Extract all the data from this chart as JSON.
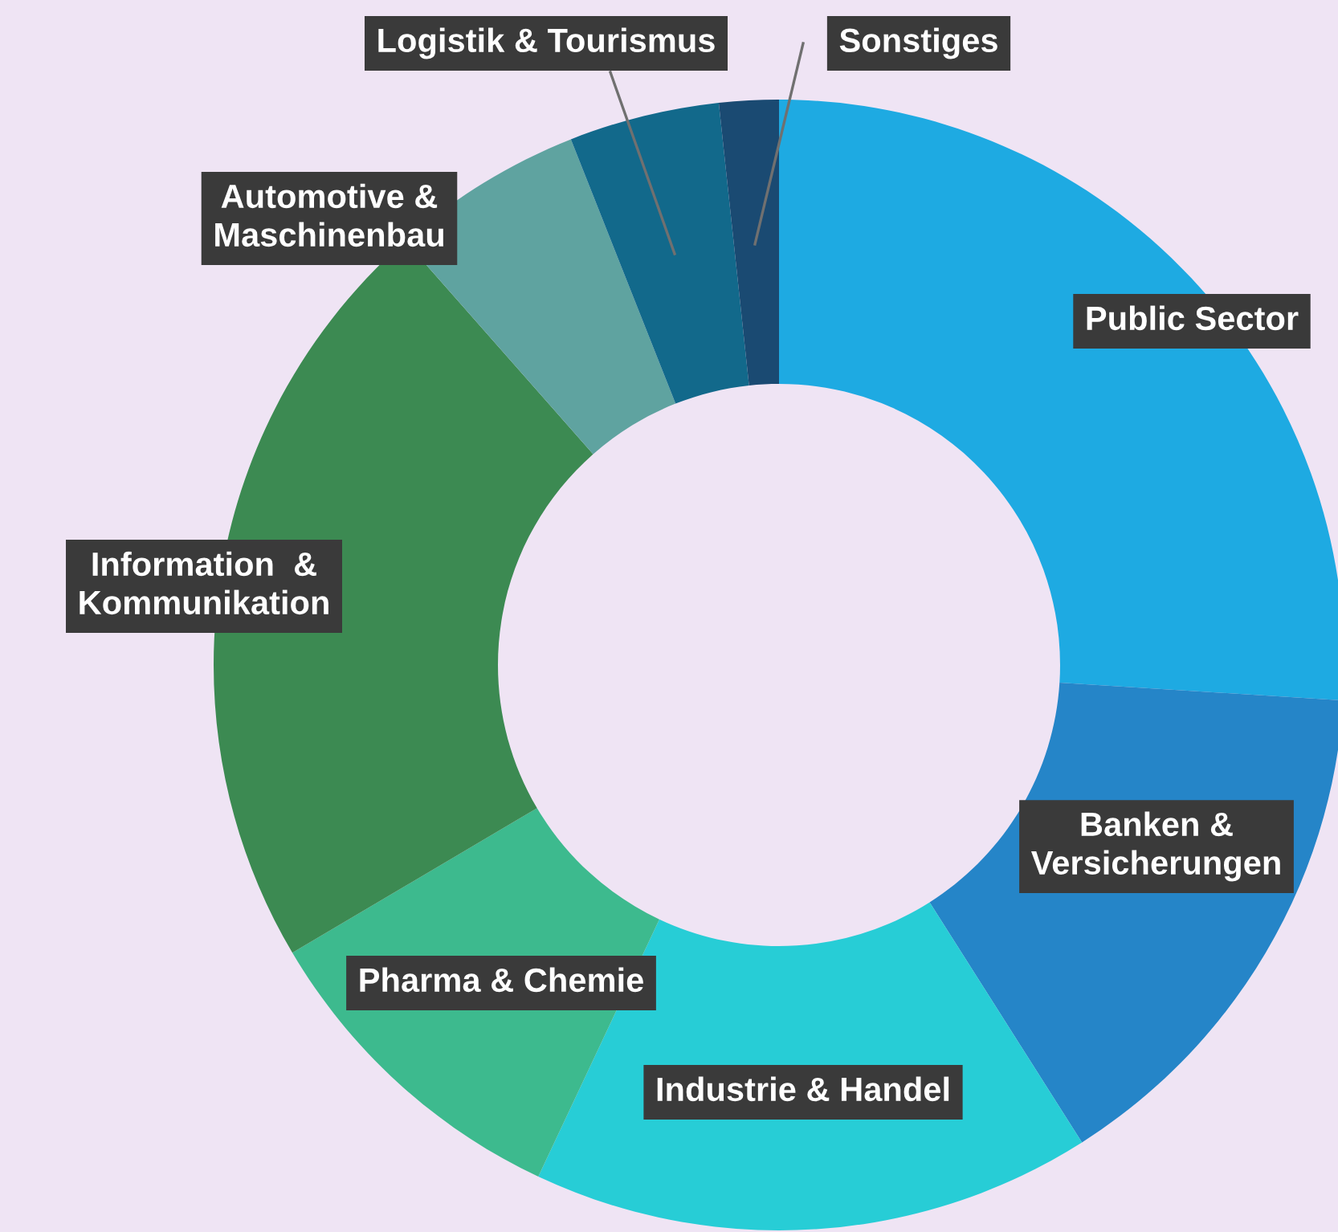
{
  "chart_data": {
    "type": "donut",
    "categories": [
      "Public Sector",
      "Banken &\nVersicherungen",
      "Industrie & Handel",
      "Pharma & Chemie",
      "Information  &\nKommunikation",
      "Automotive &\nMaschinenbau",
      "Logistik & Tourismus",
      "Sonstiges"
    ],
    "values": [
      26,
      15,
      16,
      9.5,
      22,
      5.5,
      4.3,
      1.7
    ],
    "colors": [
      "#1eaae2",
      "#2585c8",
      "#27cdd6",
      "#3dba8e",
      "#3c8a52",
      "#5fa3a0",
      "#12698b",
      "#1a4a72"
    ]
  }
}
